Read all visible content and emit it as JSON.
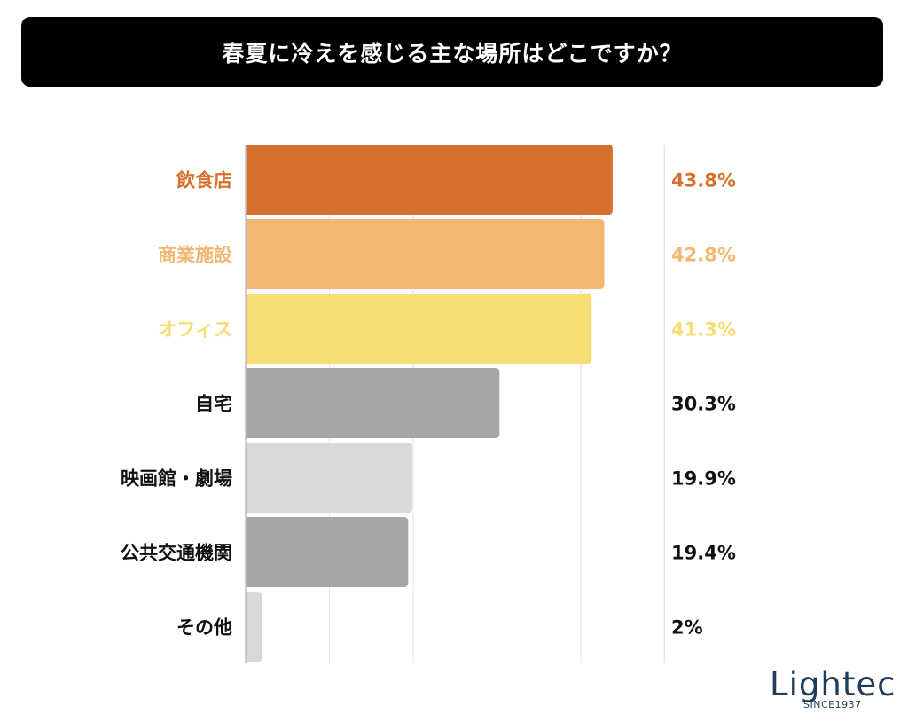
{
  "title": "春夏に冷えを感じる主な場所はどこですか？",
  "logo": {
    "word": "Lightec",
    "tagline": "SINCE1937"
  },
  "chart_data": {
    "type": "bar",
    "orientation": "horizontal",
    "title": "春夏に冷えを感じる主な場所はどこですか？",
    "categories": [
      "飲食店",
      "商業施設",
      "オフィス",
      "自宅",
      "映画館・劇場",
      "公共交通機関",
      "その他"
    ],
    "values": [
      43.8,
      42.8,
      41.3,
      30.3,
      19.9,
      19.4,
      2
    ],
    "value_labels": [
      "43.8%",
      "42.8%",
      "41.3%",
      "30.3%",
      "19.9%",
      "19.4%",
      "2%"
    ],
    "bar_colors": [
      "#d6702c",
      "#f2b872",
      "#f8dc74",
      "#a6a6a6",
      "#d9d9d9",
      "#a6a6a6",
      "#d9d9d9"
    ],
    "label_colors": [
      "#d6702c",
      "#f2b872",
      "#f8dc74",
      "#111111",
      "#111111",
      "#111111",
      "#111111"
    ],
    "xlim": [
      0,
      50
    ],
    "grid": true,
    "legend": "none"
  }
}
